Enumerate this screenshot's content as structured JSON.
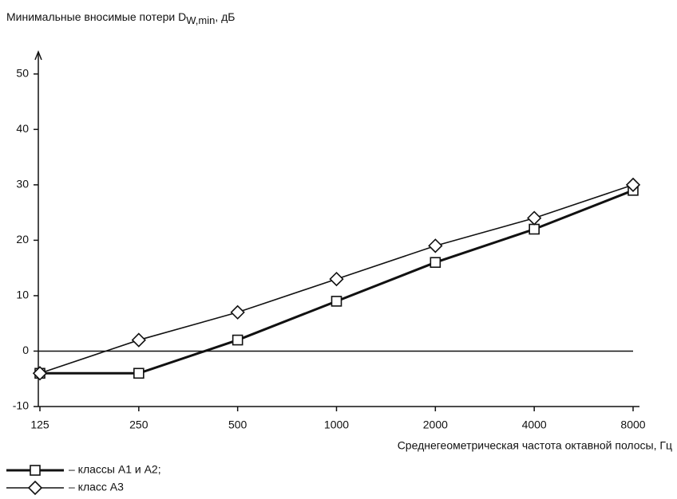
{
  "chart_data": {
    "type": "line",
    "y_label": "Минимальные вносимые потери D",
    "y_label_sub": "W,min",
    "y_label_unit": ", дБ",
    "x_label": "Среднегеометрическая частота октавной полосы, Гц",
    "categories": [
      "125",
      "250",
      "500",
      "1000",
      "2000",
      "4000",
      "8000"
    ],
    "series": [
      {
        "name": "– классы А1 и А2;",
        "color": "#111111",
        "marker": "square",
        "line_width": 3,
        "values": [
          -4,
          -4,
          2,
          9,
          16,
          22,
          29
        ]
      },
      {
        "name": "– класс А3",
        "color": "#111111",
        "marker": "diamond",
        "line_width": 1.6,
        "values": [
          -4,
          2,
          7,
          13,
          19,
          24,
          30
        ]
      }
    ],
    "ylim": [
      -10,
      54
    ],
    "yticks": [
      -10,
      0,
      10,
      20,
      30,
      40,
      50
    ],
    "zero_line": true
  }
}
